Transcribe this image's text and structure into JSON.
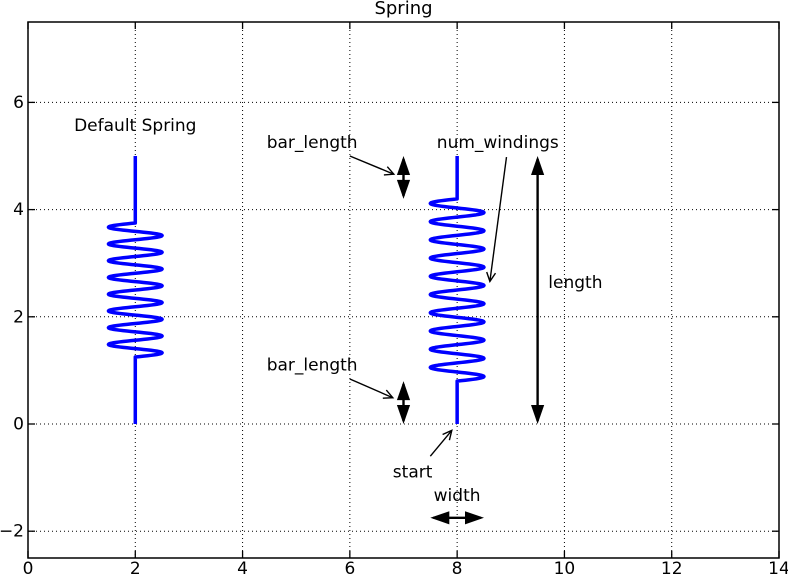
{
  "chart_data": {
    "type": "line",
    "title": "Spring",
    "xlabel": "",
    "ylabel": "",
    "xlim": [
      0,
      14
    ],
    "ylim": [
      -2.5,
      7.5
    ],
    "xticks": [
      0,
      2,
      4,
      6,
      8,
      10,
      12,
      14
    ],
    "xtick_labels": [
      "0",
      "2",
      "4",
      "6",
      "8",
      "10",
      "12",
      "14"
    ],
    "yticks": [
      -2,
      0,
      2,
      4,
      6
    ],
    "ytick_labels": [
      "−2",
      "0",
      "2",
      "4",
      "6"
    ],
    "grid": true,
    "grid_style": "dotted",
    "legend": "none",
    "line_color": "#0000ff",
    "annotation_color": "#000000",
    "springs": [
      {
        "name": "default-spring",
        "x": 2,
        "start": 0,
        "length": 5,
        "bar_length": 1.25,
        "num_windings": 8,
        "width": 1
      },
      {
        "name": "annotated-spring",
        "x": 8,
        "start": 0,
        "length": 5,
        "bar_length": 0.8,
        "num_windings": 10,
        "width": 1
      }
    ],
    "text_labels": [
      {
        "name": "default-spring-label",
        "text": "Default Spring",
        "x": 2.0,
        "y": 5.47,
        "anchor": "middle"
      },
      {
        "name": "bar-length-top-label",
        "text": "bar_length",
        "x": 4.45,
        "y": 5.15,
        "anchor": "start"
      },
      {
        "name": "num-windings-label",
        "text": "num_windings",
        "x": 7.62,
        "y": 5.15,
        "anchor": "start"
      },
      {
        "name": "length-label",
        "text": "length",
        "x": 9.7,
        "y": 2.54,
        "anchor": "start"
      },
      {
        "name": "bar-length-bottom-label",
        "text": "bar_length",
        "x": 4.45,
        "y": 1.0,
        "anchor": "start"
      },
      {
        "name": "start-label",
        "text": "start",
        "x": 6.8,
        "y": -1.0,
        "anchor": "start"
      },
      {
        "name": "width-label",
        "text": "width",
        "x": 8.0,
        "y": -1.44,
        "anchor": "middle"
      }
    ],
    "pointer_arrows": [
      {
        "name": "bar-length-top-pointer",
        "from": [
          6.0,
          5.0
        ],
        "to": [
          6.82,
          4.66
        ]
      },
      {
        "name": "num-windings-pointer",
        "from": [
          8.92,
          4.98
        ],
        "to": [
          8.61,
          2.66
        ]
      },
      {
        "name": "bar-length-bottom-pointer",
        "from": [
          6.0,
          0.84
        ],
        "to": [
          6.8,
          0.49
        ]
      },
      {
        "name": "start-pointer",
        "from": [
          7.5,
          -0.6
        ],
        "to": [
          7.9,
          -0.12
        ]
      }
    ],
    "double_arrows": [
      {
        "name": "bar-length-top-extent",
        "from": [
          7.0,
          4.2
        ],
        "to": [
          7.0,
          5.0
        ]
      },
      {
        "name": "length-extent",
        "from": [
          9.5,
          0.0
        ],
        "to": [
          9.5,
          5.0
        ]
      },
      {
        "name": "bar-length-bottom-extent",
        "from": [
          7.0,
          0.0
        ],
        "to": [
          7.0,
          0.8
        ]
      },
      {
        "name": "width-extent",
        "from": [
          7.5,
          -1.75
        ],
        "to": [
          8.5,
          -1.75
        ]
      }
    ]
  }
}
